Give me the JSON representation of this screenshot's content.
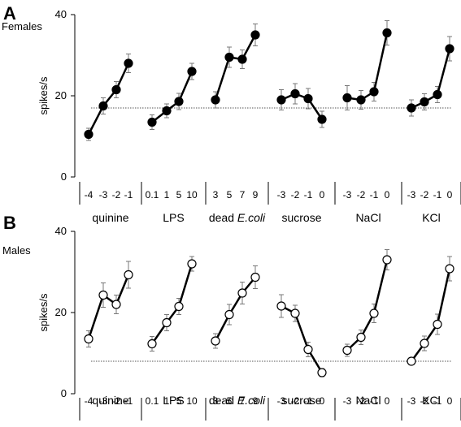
{
  "chart_data": [
    {
      "type": "line",
      "panel": "A",
      "sex_label": "Females",
      "ylabel": "spikes/s",
      "ylim": [
        0,
        40
      ],
      "yticks": [
        "0",
        "20",
        "40"
      ],
      "baseline": 17,
      "marker": "filled",
      "groups": [
        {
          "name": "quinine",
          "name_italic": "",
          "x": [
            "-4",
            "-3",
            "-2",
            "-1"
          ],
          "values": [
            10.5,
            17.5,
            21.5,
            28
          ],
          "err": [
            1.5,
            2,
            2,
            2.3
          ]
        },
        {
          "name": "LPS",
          "name_italic": "",
          "x": [
            "0.1",
            "1",
            "5",
            "10"
          ],
          "values": [
            13.5,
            16.3,
            18.6,
            26
          ],
          "err": [
            1.8,
            1.7,
            2,
            2
          ]
        },
        {
          "name": "dead ",
          "name_italic": "E.coli",
          "x": [
            "3",
            "5",
            "7",
            "9"
          ],
          "values": [
            19,
            29.5,
            29,
            35
          ],
          "err": [
            2,
            2.5,
            2.3,
            2.7
          ]
        },
        {
          "name": "sucrose",
          "name_italic": "",
          "x": [
            "-3",
            "-2",
            "-1",
            "0"
          ],
          "values": [
            19,
            20.5,
            19.3,
            14.2
          ],
          "err": [
            2.5,
            2.5,
            2.5,
            2
          ]
        },
        {
          "name": "NaCl",
          "name_italic": "",
          "x": [
            "-3",
            "-2",
            "-1",
            "0"
          ],
          "values": [
            19.5,
            19,
            21,
            35.5
          ],
          "err": [
            3,
            2.3,
            2.3,
            3
          ]
        },
        {
          "name": "KCl",
          "name_italic": "",
          "x": [
            "-3",
            "-2",
            "-1",
            "0"
          ],
          "values": [
            17,
            18.5,
            20.3,
            31.6
          ],
          "err": [
            2,
            2,
            2,
            3
          ]
        }
      ]
    },
    {
      "type": "line",
      "panel": "B",
      "sex_label": "Males",
      "ylabel": "spikes/s",
      "ylim": [
        0,
        40
      ],
      "yticks": [
        "0",
        "20",
        "40"
      ],
      "baseline": 8,
      "marker": "open",
      "groups": [
        {
          "name": "quinine",
          "name_italic": "",
          "x": [
            "-4",
            "-3",
            "-2",
            "-1"
          ],
          "values": [
            13.5,
            24.3,
            22,
            29.3
          ],
          "err": [
            2,
            3,
            2.3,
            3.3
          ]
        },
        {
          "name": "LPS",
          "name_italic": "",
          "x": [
            "0.1",
            "1",
            "5",
            "10"
          ],
          "values": [
            12.3,
            17.5,
            21.5,
            32
          ],
          "err": [
            1.8,
            2,
            2,
            1.8
          ]
        },
        {
          "name": "dead ",
          "name_italic": "E.coli",
          "x": [
            "3",
            "5",
            "7",
            "9"
          ],
          "values": [
            13,
            19.5,
            24.8,
            28.7
          ],
          "err": [
            1.8,
            2.5,
            2.7,
            2.8
          ]
        },
        {
          "name": "sucrose",
          "name_italic": "",
          "x": [
            "-3",
            "-2",
            "-1",
            "0"
          ],
          "values": [
            21.6,
            19.8,
            10.9,
            5.2
          ],
          "err": [
            2.8,
            2,
            1.8,
            1
          ]
        },
        {
          "name": "NaCl",
          "name_italic": "",
          "x": [
            "-3",
            "-2",
            "-1",
            "0"
          ],
          "values": [
            10.7,
            13.9,
            19.8,
            33
          ],
          "err": [
            1.5,
            1.8,
            2.3,
            2.5
          ]
        },
        {
          "name": "KCl",
          "name_italic": "",
          "x": [
            "-3",
            "-2",
            "-1",
            "0"
          ],
          "values": [
            8,
            12.4,
            17.1,
            30.8
          ],
          "err": [
            0.7,
            1.8,
            2.5,
            3
          ]
        }
      ]
    }
  ]
}
